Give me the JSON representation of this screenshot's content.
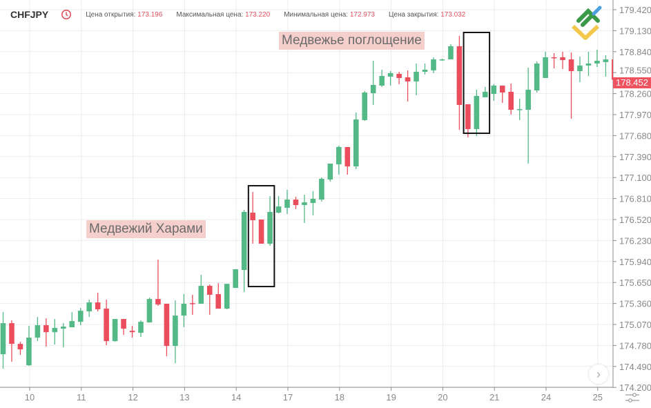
{
  "header": {
    "symbol": "CHFJPY",
    "clock_icon": "history-clock-icon",
    "open_label": "Цена открытия:",
    "open_value": "173.196",
    "high_label": "Максимальная цена:",
    "high_value": "173.220",
    "low_label": "Минимальная цена:",
    "low_value": "172.973",
    "close_label": "Цена закрытия:",
    "close_value": "173.032"
  },
  "colors": {
    "up": "#53b987",
    "down": "#eb4d5c",
    "accent": "#e0505e",
    "grid": "#ececec",
    "axis": "#8a8a8a"
  },
  "last_price": "178.452",
  "controls": {
    "scroll_right_icon": "chevron-right-icon",
    "settings_icon": "sliders-icon",
    "logo_icon": "brand-logo-icon",
    "scroll_right_glyph": "›"
  },
  "chart_data": {
    "type": "candlestick",
    "symbol": "CHFJPY",
    "ylim": [
      174.2,
      179.5
    ],
    "y_ticks": [
      "179.420",
      "179.130",
      "178.840",
      "178.550",
      "178.260",
      "177.970",
      "177.680",
      "177.390",
      "177.100",
      "176.810",
      "176.520",
      "176.230",
      "175.940",
      "175.650",
      "175.360",
      "175.070",
      "174.780",
      "174.490",
      "174.200"
    ],
    "x_ticks": [
      "10",
      "11",
      "12",
      "13",
      "14",
      "17",
      "18",
      "19",
      "20",
      "21",
      "24",
      "25"
    ],
    "grid": true,
    "ohlc_columns": [
      "open",
      "high",
      "low",
      "close"
    ],
    "candles": [
      [
        174.659,
        175.241,
        174.459,
        175.088
      ],
      [
        175.088,
        175.127,
        174.554,
        174.802
      ],
      [
        174.802,
        174.831,
        174.649,
        174.726
      ],
      [
        174.506,
        175.05,
        174.497,
        174.888
      ],
      [
        174.888,
        175.174,
        174.84,
        175.06
      ],
      [
        175.06,
        175.155,
        174.764,
        174.964
      ],
      [
        174.964,
        175.146,
        174.793,
        175.022
      ],
      [
        175.012,
        175.088,
        174.754,
        175.041
      ],
      [
        175.031,
        175.241,
        175.031,
        175.117
      ],
      [
        175.107,
        175.298,
        175.06,
        175.26
      ],
      [
        175.251,
        175.413,
        175.174,
        175.375
      ],
      [
        175.375,
        175.508,
        175.251,
        175.279
      ],
      [
        175.289,
        175.413,
        174.783,
        174.84
      ],
      [
        174.84,
        175.146,
        174.831,
        175.146
      ],
      [
        175.146,
        175.146,
        174.926,
        175.012
      ],
      [
        174.983,
        175.05,
        174.888,
        174.964
      ],
      [
        174.955,
        175.127,
        174.898,
        175.107
      ],
      [
        175.098,
        175.441,
        175.098,
        175.422
      ],
      [
        175.422,
        175.966,
        175.327,
        175.346
      ],
      [
        175.356,
        175.356,
        174.63,
        174.773
      ],
      [
        174.773,
        175.403,
        174.535,
        175.193
      ],
      [
        175.193,
        175.489,
        175.031,
        175.356
      ],
      [
        175.365,
        175.48,
        175.203,
        175.356
      ],
      [
        175.356,
        175.756,
        175.356,
        175.604
      ],
      [
        175.604,
        175.623,
        175.203,
        175.48
      ],
      [
        175.489,
        175.642,
        175.289,
        175.289
      ],
      [
        175.289,
        175.632,
        175.279,
        175.632
      ],
      [
        175.575,
        175.833,
        175.575,
        175.833
      ],
      [
        175.823,
        176.653,
        175.518,
        176.625
      ],
      [
        176.615,
        176.901,
        176.186,
        176.51
      ],
      [
        176.52,
        176.52,
        176.186,
        176.186
      ],
      [
        176.186,
        176.844,
        176.157,
        176.625
      ],
      [
        176.615,
        176.844,
        176.606,
        176.701
      ],
      [
        176.682,
        176.93,
        176.596,
        176.796
      ],
      [
        176.796,
        176.835,
        176.663,
        176.72
      ],
      [
        176.72,
        176.863,
        176.472,
        176.758
      ],
      [
        176.749,
        176.911,
        176.577,
        176.806
      ],
      [
        176.796,
        177.102,
        176.768,
        177.083
      ],
      [
        177.073,
        177.293,
        177.044,
        177.293
      ],
      [
        177.283,
        177.541,
        177.14,
        177.522
      ],
      [
        177.522,
        177.522,
        177.14,
        177.254
      ],
      [
        177.254,
        177.999,
        177.216,
        177.903
      ],
      [
        177.894,
        178.294,
        177.884,
        178.275
      ],
      [
        178.266,
        178.714,
        178.104,
        178.38
      ],
      [
        178.371,
        178.59,
        178.352,
        178.504
      ],
      [
        178.495,
        178.571,
        178.371,
        178.543
      ],
      [
        178.533,
        178.562,
        178.39,
        178.476
      ],
      [
        178.485,
        178.581,
        178.151,
        178.428
      ],
      [
        178.428,
        178.676,
        178.237,
        178.562
      ],
      [
        178.562,
        178.676,
        178.523,
        178.59
      ],
      [
        178.581,
        178.762,
        178.543,
        178.733
      ],
      [
        178.724,
        178.743,
        178.714,
        178.733
      ],
      [
        178.733,
        178.943,
        178.733,
        178.915
      ],
      [
        178.915,
        179.058,
        177.76,
        178.104
      ],
      [
        178.113,
        178.113,
        177.655,
        177.77
      ],
      [
        177.77,
        178.314,
        177.674,
        178.228
      ],
      [
        178.209,
        178.352,
        178.209,
        178.285
      ],
      [
        178.256,
        178.39,
        178.161,
        178.371
      ],
      [
        178.371,
        178.371,
        178.132,
        178.275
      ],
      [
        178.285,
        178.399,
        177.97,
        178.037
      ],
      [
        178.037,
        178.189,
        177.894,
        178.046
      ],
      [
        178.037,
        178.619,
        177.293,
        178.314
      ],
      [
        178.304,
        178.705,
        178.275,
        178.676
      ],
      [
        178.476,
        178.838,
        178.476,
        178.762
      ],
      [
        178.762,
        178.819,
        178.609,
        178.752
      ],
      [
        178.762,
        178.838,
        178.6,
        178.724
      ],
      [
        178.733,
        178.829,
        177.913,
        178.571
      ],
      [
        178.571,
        178.772,
        178.418,
        178.648
      ],
      [
        178.648,
        178.838,
        178.504,
        178.676
      ],
      [
        178.676,
        178.867,
        178.628,
        178.714
      ],
      [
        178.695,
        178.791,
        178.495,
        178.733
      ],
      [
        178.733,
        178.752,
        178.409,
        178.452
      ]
    ],
    "annotations": [
      {
        "text": "Медвежий Харами",
        "box_candles": [
          29,
          31
        ],
        "box_prices": [
          175.594,
          176.987
        ]
      },
      {
        "text": "Медвежье поглощение",
        "box_candles": [
          54,
          56
        ],
        "box_prices": [
          177.712,
          179.105
        ]
      }
    ]
  }
}
